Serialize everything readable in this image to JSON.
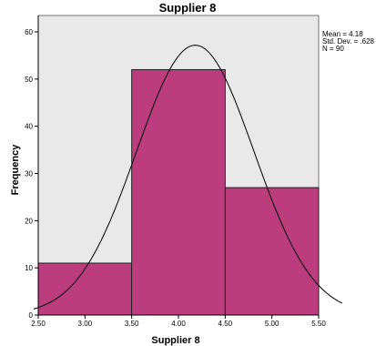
{
  "chart_data": {
    "type": "bar",
    "title": "Supplier 8",
    "xlabel": "Supplier 8",
    "ylabel": "Frequency",
    "bins": [
      {
        "from": 2.5,
        "to": 3.5,
        "count": 11
      },
      {
        "from": 3.5,
        "to": 4.5,
        "count": 52
      },
      {
        "from": 4.5,
        "to": 5.5,
        "count": 27
      }
    ],
    "x_ticks": [
      "2.50",
      "3.00",
      "3.50",
      "4.00",
      "4.50",
      "5.00",
      "5.50"
    ],
    "y_ticks": [
      "0",
      "10",
      "20",
      "30",
      "40",
      "50",
      "60"
    ],
    "xlim": [
      2.5,
      5.5
    ],
    "ylim": [
      0,
      60
    ],
    "normal_curve": {
      "mean": 4.18,
      "std_dev": 0.628,
      "n": 90,
      "bin_width": 1.0
    },
    "stats": [
      "Mean = 4.18",
      "Std. Dev. = .628",
      "N = 90"
    ],
    "colors": {
      "bar_fill": "#BB3D7E",
      "bar_stroke": "#222222",
      "plot_background": "#E9E9E9",
      "curve": "#111111"
    },
    "grid": false,
    "legend": "none"
  }
}
